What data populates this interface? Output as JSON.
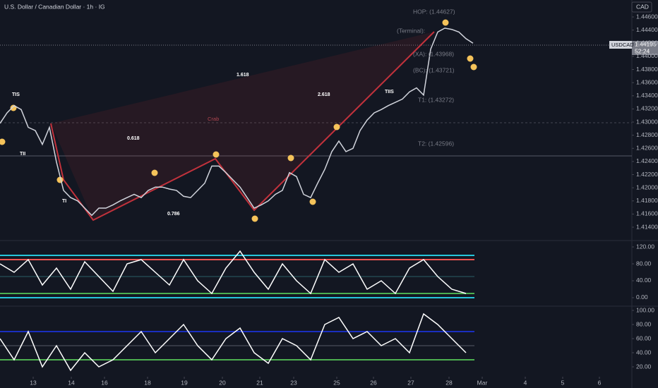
{
  "chart_data": [
    {
      "type": "line",
      "title": "U.S. Dollar / Canadian Dollar · 1h · IG",
      "currency": "CAD",
      "countdown": "52:24",
      "last_price": 1.44195,
      "x": [
        0,
        1,
        2,
        3,
        4,
        5,
        6,
        7,
        8,
        9,
        10,
        11,
        12,
        13,
        14,
        15,
        16,
        17,
        18,
        19,
        20,
        21,
        22,
        23,
        24,
        25,
        26,
        27,
        28,
        29,
        30,
        31,
        32,
        33,
        34,
        35,
        36,
        37,
        38,
        39,
        40,
        41,
        42,
        43,
        44,
        45,
        46,
        47,
        48,
        49,
        50,
        51,
        52,
        53,
        54,
        55,
        56,
        57,
        58,
        59,
        60,
        61,
        62,
        63,
        64,
        65,
        66,
        67
      ],
      "series": [
        {
          "name": "USDCAD",
          "color": "#d1d4dc",
          "values": [
            1.4298,
            1.4314,
            1.4325,
            1.4319,
            1.4292,
            1.4287,
            1.4266,
            1.4292,
            1.4239,
            1.4196,
            1.4185,
            1.418,
            1.4169,
            1.4158,
            1.4169,
            1.4169,
            1.4174,
            1.418,
            1.4185,
            1.419,
            1.4185,
            1.4196,
            1.4201,
            1.4201,
            1.4198,
            1.4196,
            1.4187,
            1.4185,
            1.4196,
            1.4207,
            1.4233,
            1.4233,
            1.4223,
            1.4212,
            1.4201,
            1.4185,
            1.4169,
            1.4174,
            1.418,
            1.419,
            1.4196,
            1.4223,
            1.4217,
            1.419,
            1.4185,
            1.4207,
            1.4228,
            1.4255,
            1.4271,
            1.4255,
            1.426,
            1.4287,
            1.4303,
            1.4314,
            1.4319,
            1.4325,
            1.433,
            1.4335,
            1.4346,
            1.4352,
            1.4341,
            1.4411,
            1.4437,
            1.4443,
            1.4441,
            1.4437,
            1.4427,
            1.442
          ]
        }
      ],
      "xlim": [
        0,
        93.2
      ],
      "ylim": [
        1.41207,
        1.44858
      ],
      "yticks": [
        {
          "value": 1.446,
          "label": "1.44600"
        },
        {
          "value": 1.444,
          "label": "1.44400"
        },
        {
          "value": 1.442,
          "label": "1.44200"
        },
        {
          "value": 1.44,
          "label": "1.44000"
        },
        {
          "value": 1.438,
          "label": "1.43800"
        },
        {
          "value": 1.436,
          "label": "1.43600"
        },
        {
          "value": 1.434,
          "label": "1.43400"
        },
        {
          "value": 1.432,
          "label": "1.43200"
        },
        {
          "value": 1.43,
          "label": "1.43000"
        },
        {
          "value": 1.428,
          "label": "1.42800"
        },
        {
          "value": 1.426,
          "label": "1.42600"
        },
        {
          "value": 1.424,
          "label": "1.42400"
        },
        {
          "value": 1.422,
          "label": "1.42200"
        },
        {
          "value": 1.42,
          "label": "1.42000"
        },
        {
          "value": 1.418,
          "label": "1.41800"
        },
        {
          "value": 1.416,
          "label": "1.41600"
        },
        {
          "value": 1.414,
          "label": "1.41400"
        }
      ],
      "xticks": [
        {
          "value": 4.7,
          "label": "13"
        },
        {
          "value": 10.1,
          "label": "14"
        },
        {
          "value": 14.8,
          "label": "16"
        },
        {
          "value": 20.9,
          "label": "18"
        },
        {
          "value": 26.1,
          "label": "19"
        },
        {
          "value": 31.5,
          "label": "20"
        },
        {
          "value": 36.8,
          "label": "21"
        },
        {
          "value": 41.6,
          "label": "23"
        },
        {
          "value": 47.7,
          "label": "25"
        },
        {
          "value": 52.9,
          "label": "26"
        },
        {
          "value": 58.2,
          "label": "27"
        },
        {
          "value": 63.6,
          "label": "28"
        },
        {
          "value": 68.3,
          "label": "Mar"
        },
        {
          "value": 74.4,
          "label": "4"
        },
        {
          "value": 79.7,
          "label": "5"
        },
        {
          "value": 84.9,
          "label": "6"
        }
      ],
      "annotations": [
        "HOP: (1.44627)",
        "(Terminal):",
        "(XA): (1.43968)",
        "(BC): (1.43721)",
        "T1: (1.43272)",
        "T2: (1.42596)",
        "1.618",
        "2.618",
        "0.618",
        "0.786",
        "TIS",
        "TII",
        "TI",
        "TIIS",
        "Crab"
      ]
    },
    {
      "type": "line",
      "x": [
        0,
        2,
        4,
        6,
        8,
        10,
        12,
        14,
        16,
        18,
        20,
        22,
        24,
        26,
        28,
        30,
        32,
        34,
        36,
        38,
        40,
        42,
        44,
        46,
        48,
        50,
        52,
        54,
        56,
        58,
        60,
        62,
        64,
        66
      ],
      "series": [
        {
          "color": "#ffffff",
          "values": [
            80,
            60,
            90,
            30,
            70,
            20,
            85,
            50,
            15,
            80,
            90,
            60,
            30,
            90,
            40,
            10,
            70,
            110,
            60,
            20,
            80,
            40,
            10,
            90,
            60,
            80,
            20,
            40,
            10,
            70,
            90,
            50,
            20,
            10
          ]
        }
      ],
      "xlim": [
        0,
        93.2
      ],
      "ylim": [
        -16.7,
        131.7
      ],
      "yticks": [
        {
          "value": 120,
          "label": "120.00"
        },
        {
          "value": 80,
          "label": "80.00"
        },
        {
          "value": 40,
          "label": "40.00"
        },
        {
          "value": 0,
          "label": "0.00"
        }
      ],
      "levels": [
        {
          "value": 100,
          "color": "#26c6da"
        },
        {
          "value": 90,
          "color": "#f05350"
        },
        {
          "value": 50,
          "color": "#2a5f66"
        },
        {
          "value": 10,
          "color": "#4caf50"
        },
        {
          "value": 0,
          "color": "#26c6da"
        }
      ]
    },
    {
      "type": "line",
      "x": [
        0,
        2,
        4,
        6,
        8,
        10,
        12,
        14,
        16,
        18,
        20,
        22,
        24,
        26,
        28,
        30,
        32,
        34,
        36,
        38,
        40,
        42,
        44,
        46,
        48,
        50,
        52,
        54,
        56,
        58,
        60,
        62,
        64,
        66
      ],
      "series": [
        {
          "color": "#ffffff",
          "values": [
            60,
            30,
            70,
            20,
            50,
            15,
            40,
            20,
            30,
            50,
            70,
            40,
            60,
            80,
            50,
            30,
            60,
            75,
            40,
            25,
            60,
            50,
            30,
            80,
            90,
            60,
            70,
            50,
            60,
            40,
            95,
            80,
            60,
            40
          ]
        }
      ],
      "xlim": [
        0,
        93.2
      ],
      "ylim": [
        8,
        104
      ],
      "yticks": [
        {
          "value": 100,
          "label": "100.00"
        },
        {
          "value": 80,
          "label": "80.00"
        },
        {
          "value": 60,
          "label": "60.00"
        },
        {
          "value": 40,
          "label": "40.00"
        },
        {
          "value": 20,
          "label": "20.00"
        }
      ],
      "levels": [
        {
          "value": 70,
          "color": "#1a2fbf"
        },
        {
          "value": 50,
          "color": "#555a66"
        },
        {
          "value": 30,
          "color": "#4caf50"
        }
      ]
    }
  ]
}
